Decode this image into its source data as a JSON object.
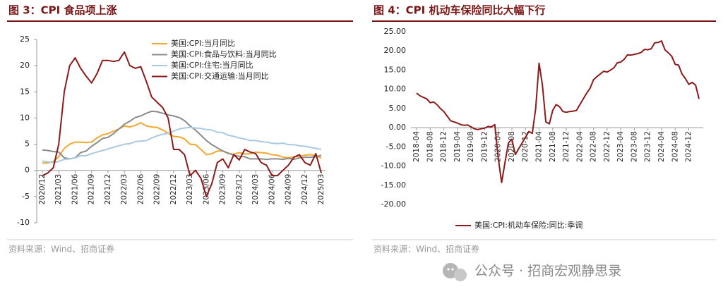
{
  "chart_data": [
    {
      "type": "line",
      "title": "图 3：CPI 食品项上涨",
      "source": "资料来源：Wind、招商证券",
      "categories": [
        "2020/12",
        null,
        null,
        "2021/03",
        null,
        null,
        "2021/06",
        null,
        null,
        "2021/09",
        null,
        null,
        "2021/12",
        null,
        null,
        "2022/03",
        null,
        null,
        "2022/06",
        null,
        null,
        "2022/09",
        null,
        null,
        "2022/12",
        null,
        null,
        "2023/03",
        null,
        null,
        "2023/06",
        null,
        null,
        "2023/09",
        null,
        null,
        "2023/12",
        null,
        null,
        "2024/03",
        null,
        null,
        "2024/06",
        null,
        null,
        "2024/09",
        null,
        null,
        "2024/12",
        null,
        null,
        "2025/03"
      ],
      "series": [
        {
          "name": "美国:CPI:当月同比",
          "color": "#f0a830",
          "values": [
            1.4,
            1.4,
            1.7,
            2.6,
            4.2,
            5.0,
            5.4,
            5.4,
            5.3,
            5.4,
            6.2,
            6.8,
            7.0,
            7.5,
            7.9,
            8.5,
            8.3,
            8.6,
            9.1,
            8.5,
            8.3,
            8.2,
            7.7,
            7.1,
            6.5,
            6.4,
            6.0,
            5.0,
            4.9,
            4.0,
            3.0,
            3.2,
            3.7,
            3.7,
            3.2,
            3.1,
            3.4,
            3.1,
            3.2,
            3.5,
            3.4,
            3.3,
            3.0,
            2.9,
            2.5,
            2.4,
            2.6,
            2.7,
            2.9,
            3.0,
            2.8,
            2.4
          ]
        },
        {
          "name": "美国:CPI:食品与饮料:当月同比",
          "color": "#8c8c8c",
          "values": [
            3.9,
            3.8,
            3.6,
            3.5,
            2.4,
            2.2,
            2.4,
            3.4,
            3.7,
            4.6,
            5.3,
            6.1,
            6.3,
            7.0,
            7.9,
            8.8,
            9.4,
            10.1,
            10.4,
            10.9,
            11.3,
            11.2,
            10.9,
            10.6,
            10.4,
            10.1,
            9.5,
            8.5,
            7.7,
            6.7,
            5.7,
            4.9,
            4.3,
            3.7,
            3.3,
            2.9,
            2.7,
            2.6,
            2.2,
            2.2,
            2.2,
            2.1,
            2.2,
            2.2,
            2.1,
            2.3,
            2.1,
            2.4,
            2.5,
            2.5,
            2.6,
            2.9
          ]
        },
        {
          "name": "美国:CPI:住宅:当月同比",
          "color": "#a9c9e3",
          "values": [
            1.8,
            1.6,
            1.5,
            1.7,
            2.1,
            2.2,
            2.4,
            2.8,
            2.8,
            3.2,
            3.5,
            3.8,
            4.1,
            4.4,
            4.7,
            5.0,
            5.1,
            5.5,
            5.6,
            5.7,
            6.2,
            6.6,
            6.9,
            7.1,
            7.5,
            7.9,
            8.1,
            8.2,
            8.1,
            8.0,
            7.8,
            7.7,
            7.3,
            7.2,
            6.7,
            6.5,
            6.2,
            6.0,
            5.7,
            5.7,
            5.5,
            5.4,
            5.2,
            5.1,
            5.2,
            4.9,
            4.9,
            4.7,
            4.6,
            4.4,
            4.2,
            4.0
          ]
        },
        {
          "name": "美国:CPI:交通运输:当月同比",
          "color": "#8b1a1a",
          "values": [
            -1.0,
            -0.5,
            0.5,
            5.0,
            15.0,
            20.0,
            21.5,
            19.5,
            18.0,
            16.7,
            18.5,
            21.0,
            21.0,
            20.8,
            21.0,
            22.6,
            20.0,
            19.5,
            19.8,
            17.0,
            14.0,
            13.0,
            12.0,
            10.0,
            4.0,
            4.0,
            3.0,
            -1.0,
            0.0,
            -1.5,
            -5.0,
            -2.5,
            1.5,
            2.2,
            0.5,
            3.0,
            2.0,
            4.0,
            3.5,
            3.2,
            1.5,
            1.0,
            -1.0,
            -1.0,
            0.0,
            1.0,
            2.5,
            3.0,
            1.5,
            1.0,
            3.2,
            -0.5
          ]
        }
      ],
      "ylim": [
        -10,
        25
      ],
      "yticks": [
        -10,
        -5,
        0,
        5,
        10,
        15,
        20,
        25
      ],
      "grid": false,
      "legend": "upper center"
    },
    {
      "type": "line",
      "title": "图 4：CPI 机动车保险同比大幅下行",
      "source": "资料来源：Wind、招商证券",
      "categories": [
        "2018-04",
        null,
        null,
        null,
        "2018-08",
        null,
        null,
        null,
        "2018-12",
        null,
        null,
        null,
        "2019-04",
        null,
        null,
        null,
        "2019-08",
        null,
        null,
        null,
        "2019-12",
        null,
        null,
        null,
        "2020-04",
        null,
        null,
        null,
        "2020-08",
        null,
        null,
        null,
        "2020-12",
        null,
        null,
        null,
        "2021-04",
        null,
        null,
        null,
        "2021-08",
        null,
        null,
        null,
        "2021-12",
        null,
        null,
        null,
        "2022-04",
        null,
        null,
        null,
        "2022-08",
        null,
        null,
        null,
        "2022-12",
        null,
        null,
        null,
        "2023-04",
        null,
        null,
        null,
        "2023-08",
        null,
        null,
        null,
        "2023-12",
        null,
        null,
        null,
        "2024-04",
        null,
        null,
        null,
        "2024-08",
        null,
        null,
        null,
        "2024-12",
        null,
        null,
        null
      ],
      "series": [
        {
          "name": "美国:CPI:机动车保险:同比:季调",
          "color": "#8b1a1a",
          "values": [
            9.0,
            8.3,
            7.9,
            7.5,
            6.5,
            6.7,
            6.0,
            5.0,
            4.2,
            3.0,
            1.8,
            1.5,
            1.2,
            0.8,
            0.6,
            0.7,
            0.2,
            -0.3,
            -0.5,
            -0.3,
            -0.1,
            0.3,
            0.2,
            0.8,
            -8.0,
            -14.3,
            -9.0,
            -4.0,
            -3.0,
            -7.0,
            -5.5,
            -4.0,
            -2.5,
            -1.0,
            -1.5,
            5.0,
            16.8,
            11.0,
            1.5,
            1.0,
            4.5,
            6.0,
            5.5,
            4.2,
            4.0,
            4.2,
            4.3,
            4.5,
            6.0,
            7.5,
            9.0,
            10.3,
            12.5,
            13.3,
            14.0,
            14.7,
            14.5,
            15.0,
            15.6,
            16.9,
            17.1,
            17.8,
            19.0,
            18.9,
            19.1,
            19.3,
            19.6,
            20.4,
            20.3,
            20.6,
            22.1,
            22.2,
            22.6,
            20.3,
            19.5,
            18.6,
            16.5,
            16.3,
            14.0,
            12.8,
            11.3,
            11.8,
            11.1,
            7.5
          ]
        }
      ],
      "ylim": [
        -20,
        25
      ],
      "yticks": [
        {
          "value": -20,
          "label": "-20.00"
        },
        {
          "value": -15,
          "label": "-15.00"
        },
        {
          "value": -10,
          "label": "-10.00"
        },
        {
          "value": -5,
          "label": "-5.00"
        },
        {
          "value": 0,
          "label": "0.00"
        },
        {
          "value": 5,
          "label": "5.00"
        },
        {
          "value": 10,
          "label": "10.00"
        },
        {
          "value": 15,
          "label": "15.00"
        },
        {
          "value": 20,
          "label": "20.00"
        },
        {
          "value": 25,
          "label": "25.00"
        }
      ],
      "grid": false,
      "legend": "lower center"
    }
  ],
  "watermark": "公众号 · 招商宏观静思录"
}
